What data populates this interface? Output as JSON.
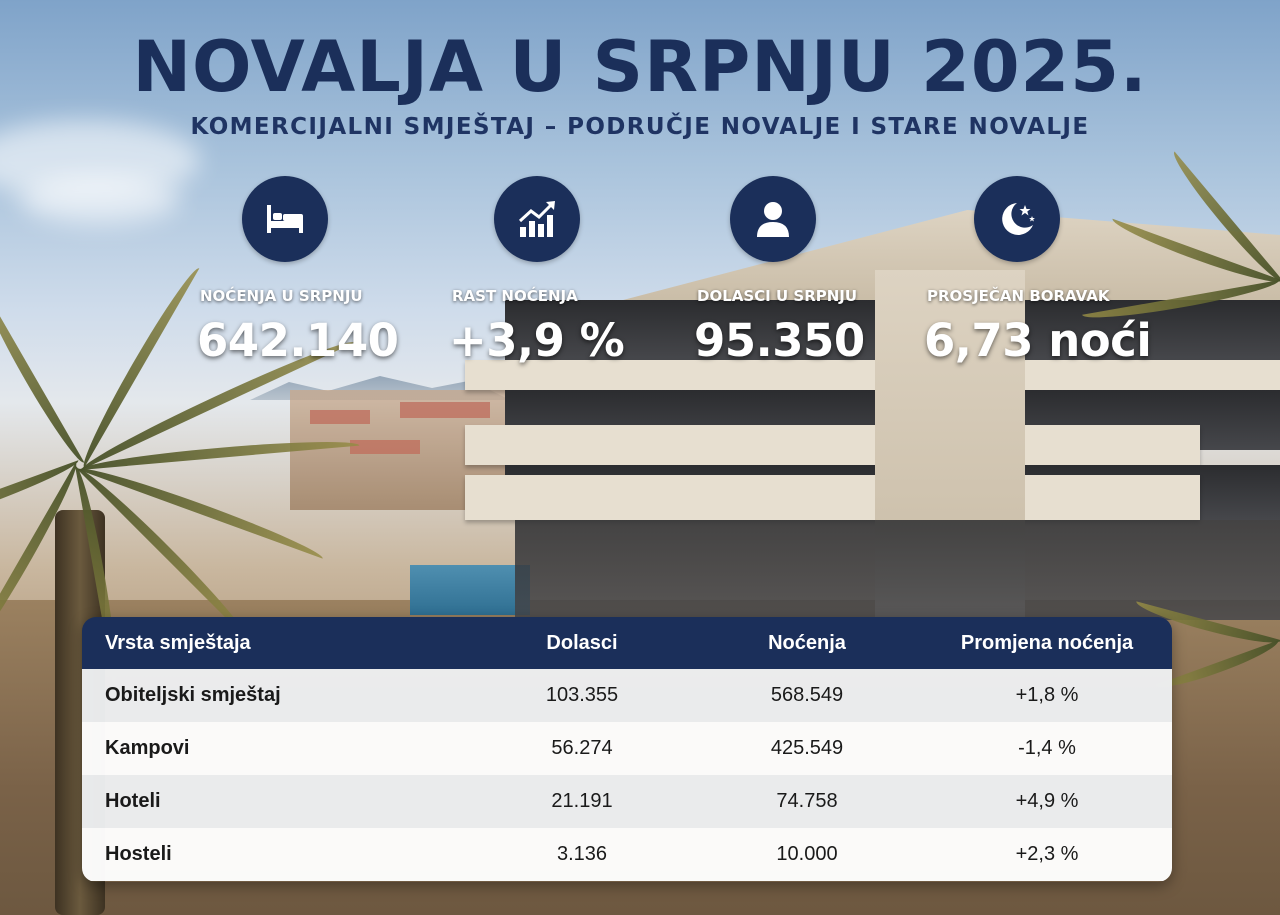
{
  "header": {
    "title": "NOVALJA U SRPNJU 2025.",
    "subtitle": "KOMERCIJALNI SMJEŠTAJ – PODRUČJE NOVALJE I STARE NOVALJE"
  },
  "stats": [
    {
      "icon": "bed-icon",
      "label": "NOĆENJA U SRPNJU",
      "value": "642.140"
    },
    {
      "icon": "growth-chart-icon",
      "label": "RAST NOĆENJA",
      "value": "+3,9 %"
    },
    {
      "icon": "person-icon",
      "label": "DOLASCI U SRPNJU",
      "value": "95.350"
    },
    {
      "icon": "moon-stars-icon",
      "label": "PROSJEČAN BORAVAK",
      "value": "6,73 noći"
    }
  ],
  "table": {
    "headers": [
      "Vrsta smještaja",
      "Dolasci",
      "Noćenja",
      "Promjena noćenja"
    ],
    "rows": [
      [
        "Obiteljski smještaj",
        "103.355",
        "568.549",
        "+1,8 %"
      ],
      [
        "Kampovi",
        "56.274",
        "425.549",
        "-1,4 %"
      ],
      [
        "Hoteli",
        "21.191",
        "74.758",
        "+4,9 %"
      ],
      [
        "Hosteli",
        "3.136",
        "10.000",
        "+2,3 %"
      ]
    ]
  },
  "colors": {
    "navy": "#1b2f5a",
    "white": "#ffffff"
  }
}
